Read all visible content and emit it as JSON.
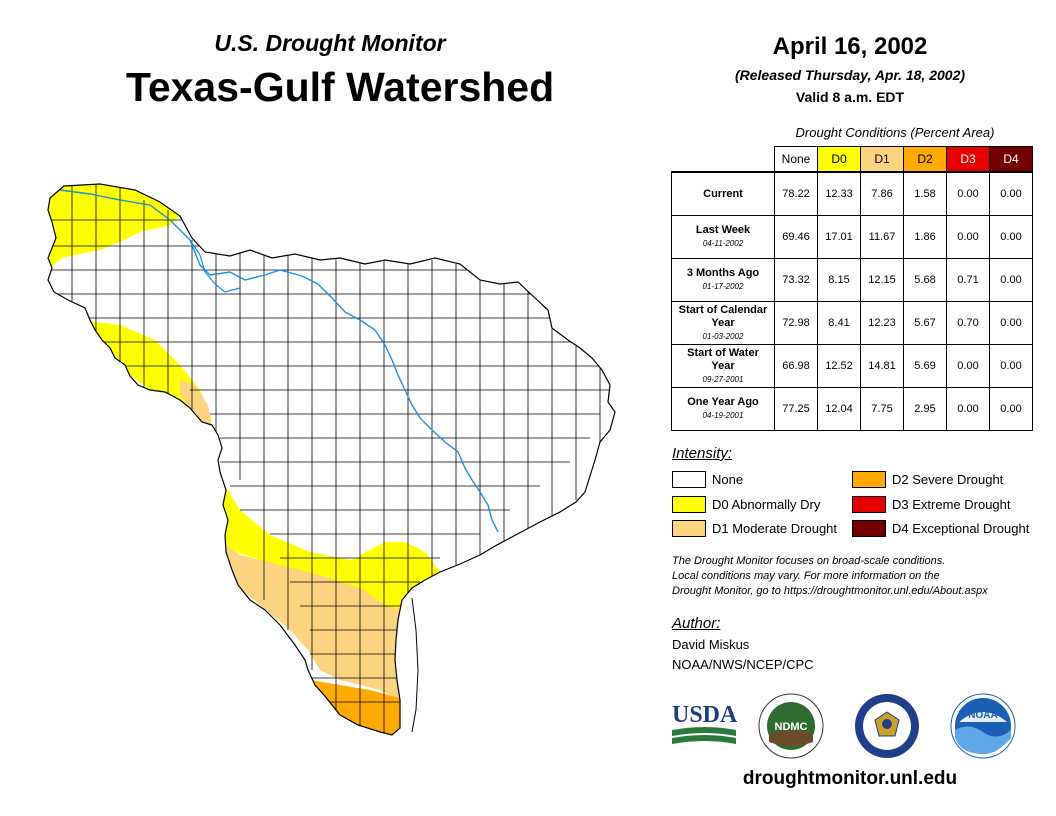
{
  "header": {
    "subtitle": "U.S. Drought Monitor",
    "title": "Texas-Gulf Watershed",
    "date": "April 16, 2002",
    "released": "(Released Thursday, Apr. 18, 2002)",
    "valid": "Valid 8 a.m. EDT"
  },
  "table": {
    "title": "Drought Conditions (Percent Area)",
    "columns": [
      {
        "label": "None",
        "color": "#ffffff",
        "text_color": "#000000"
      },
      {
        "label": "D0",
        "color": "#ffff00",
        "text_color": "#000000"
      },
      {
        "label": "D1",
        "color": "#fcd37f",
        "text_color": "#000000"
      },
      {
        "label": "D2",
        "color": "#ffaa00",
        "text_color": "#000000"
      },
      {
        "label": "D3",
        "color": "#e60000",
        "text_color": "#ffffff"
      },
      {
        "label": "D4",
        "color": "#730000",
        "text_color": "#ffffff"
      }
    ],
    "rows": [
      {
        "label": "Current",
        "date": "",
        "values": [
          "78.22",
          "12.33",
          "7.86",
          "1.58",
          "0.00",
          "0.00"
        ]
      },
      {
        "label": "Last Week",
        "date": "04-11-2002",
        "values": [
          "69.46",
          "17.01",
          "11.67",
          "1.86",
          "0.00",
          "0.00"
        ]
      },
      {
        "label": "3 Months Ago",
        "date": "01-17-2002",
        "values": [
          "73.32",
          "8.15",
          "12.15",
          "5.68",
          "0.71",
          "0.00"
        ]
      },
      {
        "label": "Start of Calendar Year",
        "date": "01-03-2002",
        "values": [
          "72.98",
          "8.41",
          "12.23",
          "5.67",
          "0.70",
          "0.00"
        ]
      },
      {
        "label": "Start of Water Year",
        "date": "09-27-2001",
        "values": [
          "66.98",
          "12.52",
          "14.81",
          "5.69",
          "0.00",
          "0.00"
        ]
      },
      {
        "label": "One Year Ago",
        "date": "04-19-2001",
        "values": [
          "77.25",
          "12.04",
          "7.75",
          "2.95",
          "0.00",
          "0.00"
        ]
      }
    ]
  },
  "legend": {
    "title": "Intensity:",
    "items": [
      {
        "label": "None",
        "color": "#ffffff"
      },
      {
        "label": "D0 Abnormally Dry",
        "color": "#ffff00"
      },
      {
        "label": "D1 Moderate Drought",
        "color": "#fcd37f"
      },
      {
        "label": "D2 Severe Drought",
        "color": "#ffaa00"
      },
      {
        "label": "D3 Extreme Drought",
        "color": "#e60000"
      },
      {
        "label": "D4 Exceptional Drought",
        "color": "#730000"
      }
    ]
  },
  "note": {
    "line1": "The Drought Monitor focuses on broad-scale conditions.",
    "line2": "Local conditions may vary. For more information on the",
    "line3": "Drought Monitor, go to https://droughtmonitor.unl.edu/About.aspx"
  },
  "author": {
    "heading": "Author:",
    "name": "David Miskus",
    "org": "NOAA/NWS/NCEP/CPC"
  },
  "logos": {
    "usda": "USDA",
    "ndmc": "NDMC",
    "noaa": "NOAA"
  },
  "footer": {
    "url": "droughtmonitor.unl.edu"
  }
}
